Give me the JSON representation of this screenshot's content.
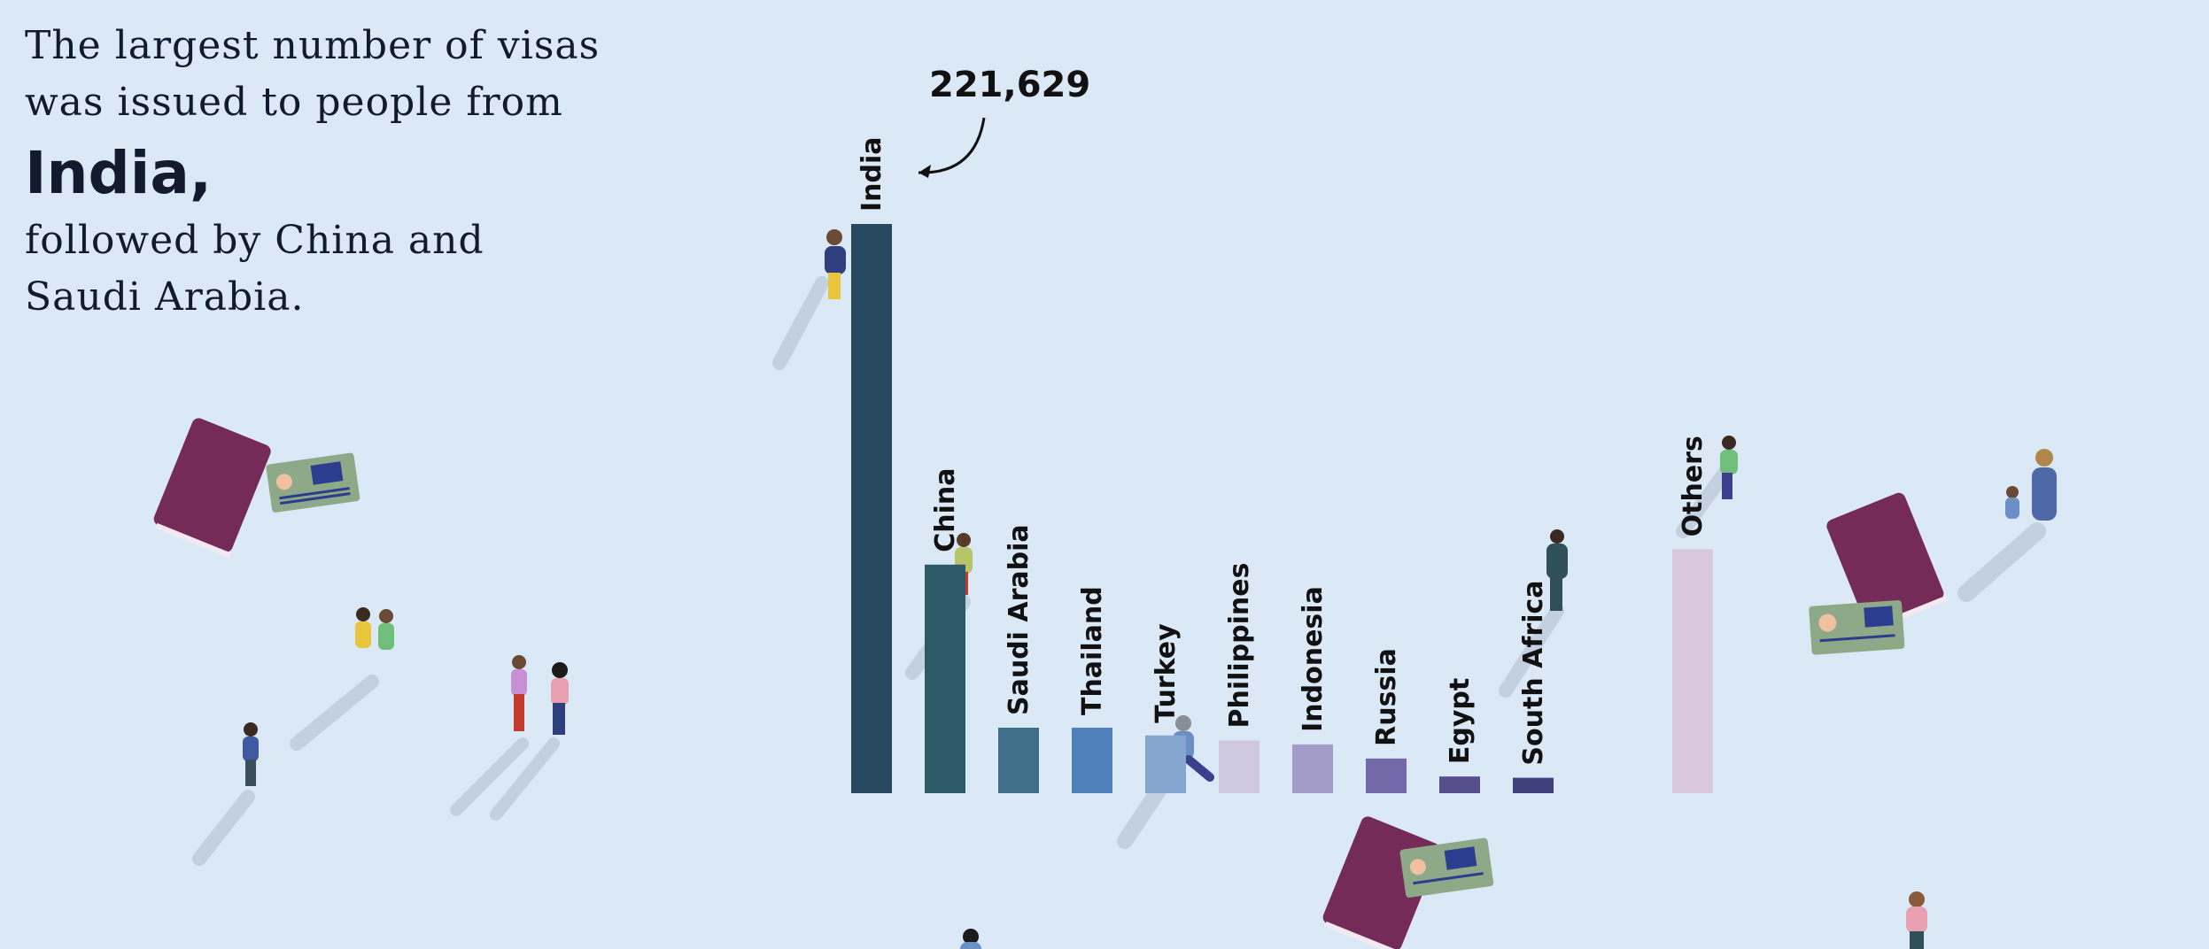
{
  "headline": {
    "line1": "The largest number of visas",
    "line2": "was issued to people from",
    "emphasis": "India,",
    "line3": "followed by China and",
    "line4": "Saudi Arabia."
  },
  "chart_data": {
    "type": "bar",
    "categories": [
      "India",
      "China",
      "Saudi Arabia",
      "Thailand",
      "Turkey",
      "Philippines",
      "Indonesia",
      "Russia",
      "Egypt",
      "South Africa",
      "Others"
    ],
    "values": [
      221629,
      89000,
      25500,
      25500,
      22500,
      20500,
      19000,
      13500,
      6500,
      6000,
      95000
    ],
    "colors": [
      "#27485f",
      "#2d5a68",
      "#3f6e88",
      "#4e80ba",
      "#86a6d0",
      "#cfc7e0",
      "#a29bc7",
      "#7368a8",
      "#574f8b",
      "#3f3f7c",
      "#d8c8dd"
    ],
    "annotations": [
      {
        "category": "India",
        "text": "221,629"
      }
    ],
    "ylim": [
      0,
      221629
    ],
    "grid": false,
    "legend": "none"
  }
}
